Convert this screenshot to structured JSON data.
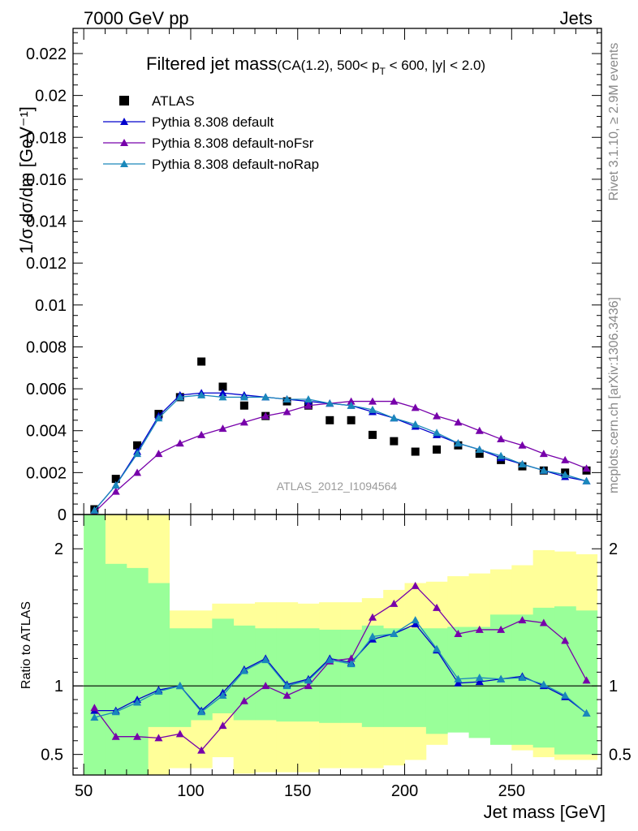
{
  "header": {
    "left": "7000 GeV pp",
    "right": "Jets"
  },
  "side_labels": {
    "rivet": "Rivet 3.1.10, ≥ 2.9M events",
    "mcplots": "mcplots.cern.ch [arXiv:1306.3436]"
  },
  "chart_data": [
    {
      "type": "scatter",
      "title": "Filtered jet mass",
      "title_sub": "(CA(1.2), 500< p",
      "title_sub_T": "T",
      "title_sub_end": " < 600, |y| < 2.0)",
      "ylabel": "1/σ dσ/dm [GeV⁻¹]",
      "watermark": "ATLAS_2012_I1094564",
      "xlim": [
        45,
        292
      ],
      "ylim": [
        0,
        0.0232
      ],
      "yticks": [
        0,
        0.002,
        0.004,
        0.006,
        0.008,
        0.01,
        0.012,
        0.014,
        0.016,
        0.018,
        0.02,
        0.022
      ],
      "ytick_labels": [
        "0",
        "0.002",
        "0.004",
        "0.006",
        "0.008",
        "0.01",
        "0.012",
        "0.014",
        "0.016",
        "0.018",
        "0.02",
        "0.022"
      ],
      "x": [
        55,
        65,
        75,
        85,
        95,
        105,
        115,
        125,
        135,
        145,
        155,
        165,
        175,
        185,
        195,
        205,
        215,
        225,
        235,
        245,
        255,
        265,
        275,
        285
      ],
      "series": [
        {
          "name": "ATLAS",
          "color": "#000000",
          "marker": "square",
          "values": [
            0.00025,
            0.0017,
            0.0033,
            0.0048,
            0.0056,
            0.0073,
            0.0061,
            0.0052,
            0.0047,
            0.0054,
            0.0052,
            0.0045,
            0.0045,
            0.0038,
            0.0035,
            0.003,
            0.0031,
            0.0033,
            0.0029,
            0.0026,
            0.0023,
            0.0021,
            0.002,
            0.0021
          ]
        },
        {
          "name": "Pythia 8.308 default",
          "color": "#0000cc",
          "marker": "triangle",
          "values": [
            0.0002,
            0.0014,
            0.003,
            0.0047,
            0.0057,
            0.0058,
            0.0058,
            0.0057,
            0.0056,
            0.0055,
            0.0054,
            0.0053,
            0.0052,
            0.0049,
            0.0046,
            0.0042,
            0.0038,
            0.0034,
            0.0031,
            0.0027,
            0.0024,
            0.0021,
            0.0018,
            0.0016
          ]
        },
        {
          "name": "Pythia 8.308 default-noFsr",
          "color": "#7700aa",
          "marker": "triangle",
          "values": [
            0.0001,
            0.0011,
            0.002,
            0.0029,
            0.0034,
            0.0038,
            0.0041,
            0.0044,
            0.0047,
            0.0049,
            0.0052,
            0.0053,
            0.0054,
            0.0054,
            0.0054,
            0.0051,
            0.0047,
            0.0044,
            0.004,
            0.0036,
            0.0033,
            0.0029,
            0.0026,
            0.0022
          ]
        },
        {
          "name": "Pythia 8.308 default-noRap",
          "color": "#1a88bb",
          "marker": "triangle",
          "values": [
            0.0002,
            0.0014,
            0.0029,
            0.0046,
            0.0056,
            0.0057,
            0.0056,
            0.0056,
            0.0056,
            0.0055,
            0.0055,
            0.0053,
            0.0052,
            0.005,
            0.0046,
            0.0043,
            0.0039,
            0.0034,
            0.0031,
            0.0028,
            0.0024,
            0.0021,
            0.0019,
            0.0016
          ]
        }
      ]
    },
    {
      "type": "scatter",
      "ylabel": "Ratio to ATLAS",
      "xlabel": "Jet mass [GeV]",
      "xlim": [
        45,
        292
      ],
      "ylim": [
        0.35,
        2.25
      ],
      "xticks": [
        50,
        100,
        150,
        200,
        250
      ],
      "xtick_labels": [
        "50",
        "100",
        "150",
        "200",
        "250"
      ],
      "yticks": [
        0.5,
        1,
        2
      ],
      "ytick_labels": [
        "0.5",
        "1",
        "2"
      ],
      "bins": [
        50,
        60,
        70,
        80,
        90,
        100,
        110,
        120,
        130,
        140,
        150,
        160,
        170,
        180,
        190,
        200,
        210,
        220,
        230,
        240,
        250,
        260,
        270,
        280,
        290
      ],
      "band_yellow": {
        "lo": [
          0.35,
          0.35,
          0.35,
          0.35,
          0.4,
          0.4,
          0.48,
          0.36,
          0.37,
          0.37,
          0.37,
          0.4,
          0.4,
          0.4,
          0.42,
          0.46,
          0.57,
          0.69,
          0.67,
          0.62,
          0.53,
          0.48,
          0.46,
          0.46
        ],
        "hi": [
          2.25,
          2.25,
          2.25,
          2.25,
          1.55,
          1.55,
          1.6,
          1.6,
          1.61,
          1.61,
          1.6,
          1.61,
          1.61,
          1.64,
          1.7,
          1.75,
          1.76,
          1.8,
          1.82,
          1.85,
          1.88,
          1.99,
          1.98,
          1.96
        ]
      },
      "band_green": {
        "lo": [
          0.35,
          0.35,
          0.35,
          0.7,
          0.7,
          0.75,
          0.8,
          0.75,
          0.75,
          0.74,
          0.74,
          0.73,
          0.73,
          0.7,
          0.7,
          0.7,
          0.65,
          0.66,
          0.62,
          0.57,
          0.57,
          0.55,
          0.5,
          0.5
        ],
        "hi": [
          2.25,
          1.89,
          1.86,
          1.75,
          1.42,
          1.42,
          1.49,
          1.44,
          1.42,
          1.42,
          1.42,
          1.41,
          1.41,
          1.44,
          1.42,
          1.42,
          1.42,
          1.43,
          1.43,
          1.52,
          1.52,
          1.57,
          1.58,
          1.55
        ]
      },
      "x": [
        55,
        65,
        75,
        85,
        95,
        105,
        115,
        125,
        135,
        145,
        155,
        165,
        175,
        185,
        195,
        205,
        215,
        225,
        235,
        245,
        255,
        265,
        275,
        285
      ],
      "series": [
        {
          "name": "Pythia 8.308 default",
          "color": "#0000cc",
          "values": [
            0.82,
            0.82,
            0.9,
            0.97,
            1.0,
            0.82,
            0.95,
            1.12,
            1.2,
            1.01,
            1.05,
            1.2,
            1.17,
            1.34,
            1.38,
            1.45,
            1.26,
            1.02,
            1.03,
            1.05,
            1.07,
            1.0,
            0.92,
            0.8
          ]
        },
        {
          "name": "Pythia 8.308 default-noFsr",
          "color": "#7700aa",
          "values": [
            0.84,
            0.63,
            0.63,
            0.62,
            0.65,
            0.53,
            0.71,
            0.89,
            1.0,
            0.93,
            1.0,
            1.18,
            1.2,
            1.5,
            1.6,
            1.73,
            1.57,
            1.38,
            1.41,
            1.41,
            1.48,
            1.46,
            1.33,
            1.04
          ]
        },
        {
          "name": "Pythia 8.308 default-noRap",
          "color": "#1a88bb",
          "values": [
            0.77,
            0.81,
            0.88,
            0.96,
            1.0,
            0.81,
            0.93,
            1.11,
            1.19,
            1.0,
            1.04,
            1.19,
            1.16,
            1.36,
            1.38,
            1.48,
            1.27,
            1.05,
            1.06,
            1.05,
            1.06,
            1.01,
            0.93,
            0.8
          ]
        }
      ]
    }
  ]
}
